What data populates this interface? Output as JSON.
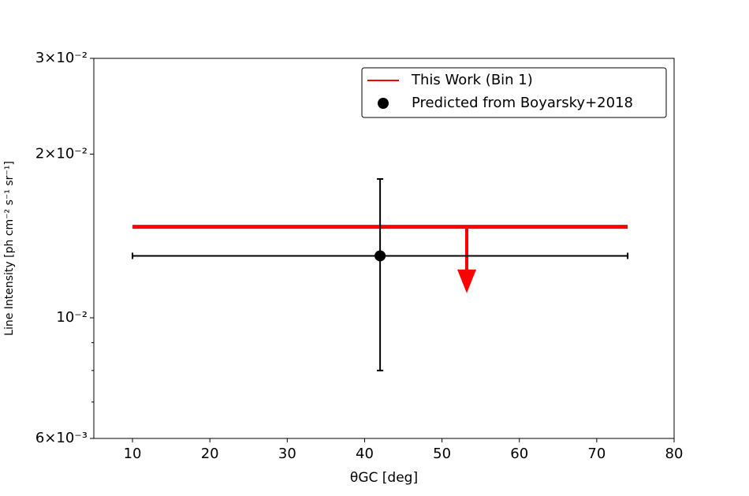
{
  "chart_data": {
    "type": "errorbar",
    "xlabel": "θGC [deg]",
    "ylabel": "Line Intensity [ph cm⁻² s⁻¹ sr⁻¹]",
    "xlim": [
      5,
      80
    ],
    "xticks": [
      10,
      20,
      30,
      40,
      50,
      60,
      70,
      80
    ],
    "ylim": [
      0.006,
      0.03
    ],
    "yscale": "log",
    "yticks": [
      {
        "value": 0.006,
        "label": "6×10⁻³"
      },
      {
        "value": 0.01,
        "label": "10⁻²"
      },
      {
        "value": 0.02,
        "label": "2×10⁻²"
      },
      {
        "value": 0.03,
        "label": "3×10⁻²"
      }
    ],
    "yminorticks": [
      0.007,
      0.008,
      0.009
    ],
    "legend": "upper right",
    "series": [
      {
        "name": "This Work (Bin 1)",
        "color": "#ff0000",
        "x": [
          10,
          74
        ],
        "values": [
          0.0147,
          0.0147
        ],
        "upper_limit_arrow": {
          "x": 53.2,
          "to": 0.0111
        }
      },
      {
        "name": "Predicted from Boyarsky+2018",
        "color": "#000000",
        "x": [
          42
        ],
        "values": [
          0.013
        ],
        "xerr": [
          32
        ],
        "yerr": [
          0.005
        ]
      }
    ]
  }
}
